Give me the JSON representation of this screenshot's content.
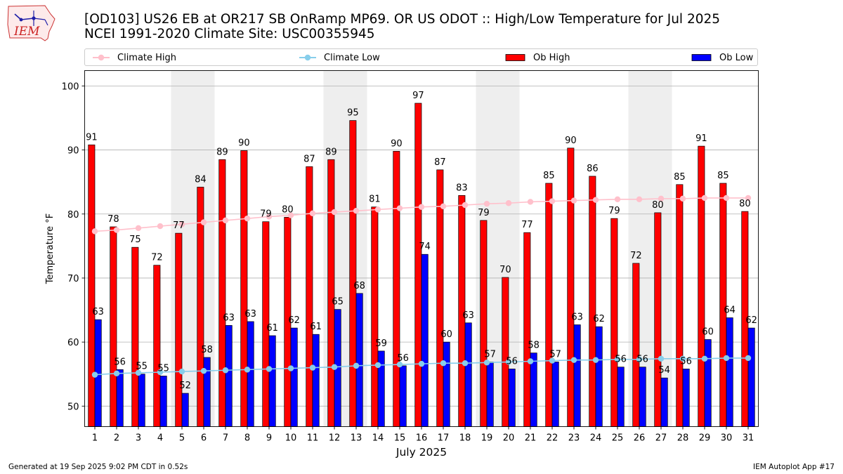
{
  "logo": {
    "text": "IEM"
  },
  "title": {
    "line1": "[OD103] US26 EB at OR217 SB OnRamp MP69. OR US ODOT :: High/Low Temperature for Jul 2025",
    "line2": "NCEI 1991-2020 Climate Site: USC00355945"
  },
  "legend": [
    {
      "label": "Climate High",
      "kind": "line",
      "color": "#ffc0cb"
    },
    {
      "label": "Climate Low",
      "kind": "line",
      "color": "#87ceeb"
    },
    {
      "label": "Ob High",
      "kind": "bar",
      "color": "#ff0000"
    },
    {
      "label": "Ob Low",
      "kind": "bar",
      "color": "#0000ff"
    }
  ],
  "footer": {
    "left": "Generated at 19 Sep 2025 9:02 PM CDT in 0.52s",
    "right": "IEM Autoplot App #17"
  },
  "chart_data": {
    "type": "bar",
    "xlabel": "July 2025",
    "ylabel": "Temperature °F",
    "ylim": [
      46.8,
      102.4
    ],
    "yticks": [
      50,
      60,
      70,
      80,
      90,
      100
    ],
    "grid": true,
    "legend_position": "top",
    "categories": [
      "1",
      "2",
      "3",
      "4",
      "5",
      "6",
      "7",
      "8",
      "9",
      "10",
      "11",
      "12",
      "13",
      "14",
      "15",
      "16",
      "17",
      "18",
      "19",
      "20",
      "21",
      "22",
      "23",
      "24",
      "25",
      "26",
      "27",
      "28",
      "29",
      "30",
      "31"
    ],
    "weekend_shading": [
      [
        5,
        6
      ],
      [
        12,
        13
      ],
      [
        19,
        20
      ],
      [
        26,
        27
      ]
    ],
    "shade_color": "#eeeeee",
    "series": [
      {
        "name": "Ob High",
        "color": "#ff0000",
        "values": [
          91,
          78,
          75,
          72,
          77,
          84,
          89,
          90,
          79,
          80,
          87,
          89,
          95,
          81,
          90,
          97,
          87,
          83,
          79,
          70,
          77,
          85,
          90,
          86,
          79,
          72,
          80,
          85,
          91,
          85,
          80
        ],
        "plot_values": [
          90.8,
          78.0,
          74.8,
          72.0,
          77.0,
          84.2,
          88.5,
          89.9,
          78.8,
          79.5,
          87.4,
          88.5,
          94.6,
          81.1,
          89.8,
          97.3,
          86.9,
          82.9,
          79.0,
          70.1,
          77.1,
          84.8,
          90.3,
          85.9,
          79.3,
          72.3,
          80.2,
          84.6,
          90.6,
          84.8,
          80.4
        ]
      },
      {
        "name": "Ob Low",
        "color": "#0000ff",
        "values": [
          63,
          56,
          55,
          55,
          52,
          58,
          63,
          63,
          61,
          62,
          61,
          65,
          68,
          59,
          56,
          74,
          60,
          63,
          57,
          56,
          58,
          57,
          63,
          62,
          56,
          56,
          54,
          56,
          60,
          64,
          62
        ],
        "plot_values": [
          63.5,
          55.7,
          55.0,
          54.7,
          52.0,
          57.6,
          62.6,
          63.2,
          61.0,
          62.2,
          61.2,
          65.1,
          67.6,
          58.6,
          56.3,
          73.7,
          60.0,
          63.0,
          56.9,
          55.8,
          58.3,
          56.9,
          62.7,
          62.4,
          56.1,
          56.1,
          54.4,
          55.8,
          60.4,
          63.8,
          62.2
        ]
      },
      {
        "name": "Climate High",
        "color": "#ffc0cb",
        "values": [
          77.3,
          77.5,
          77.8,
          78.1,
          78.4,
          78.7,
          79.0,
          79.3,
          79.6,
          79.8,
          80.1,
          80.3,
          80.5,
          80.7,
          80.9,
          81.1,
          81.2,
          81.4,
          81.6,
          81.7,
          81.9,
          82.0,
          82.1,
          82.2,
          82.3,
          82.3,
          82.4,
          82.4,
          82.5,
          82.5,
          82.5
        ]
      },
      {
        "name": "Climate Low",
        "color": "#87ceeb",
        "values": [
          54.9,
          55.1,
          55.2,
          55.3,
          55.4,
          55.5,
          55.6,
          55.7,
          55.8,
          55.9,
          56.0,
          56.1,
          56.3,
          56.4,
          56.5,
          56.6,
          56.7,
          56.7,
          56.8,
          56.9,
          57.0,
          57.1,
          57.2,
          57.2,
          57.3,
          57.3,
          57.4,
          57.4,
          57.4,
          57.5,
          57.5
        ]
      }
    ]
  }
}
